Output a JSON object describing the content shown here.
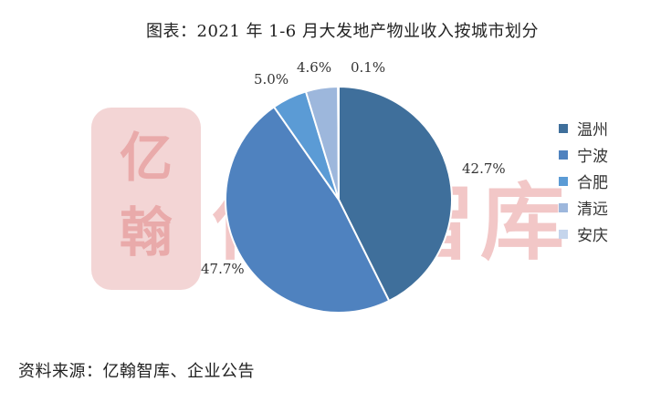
{
  "title": "图表：2021 年 1-6 月大发地产物业收入按城市划分",
  "source": "资料来源：亿翰智库、企业公告",
  "watermark": {
    "seal_text": "亿翰",
    "text": "亿翰智库"
  },
  "chart_data": {
    "type": "pie",
    "title": "图表：2021 年 1-6 月大发地产物业收入按城市划分",
    "categories": [
      "温州",
      "宁波",
      "合肥",
      "清远",
      "安庆"
    ],
    "values": [
      42.7,
      47.7,
      5.0,
      4.6,
      0.1
    ],
    "labels": [
      "42.7%",
      "47.7%",
      "5.0%",
      "4.6%",
      "0.1%"
    ],
    "colors": [
      "#3f6f9b",
      "#4f82bf",
      "#5b9bd5",
      "#9db7dc",
      "#c5d5ec"
    ],
    "legend_position": "right",
    "start_angle": "12 o'clock, clockwise"
  }
}
